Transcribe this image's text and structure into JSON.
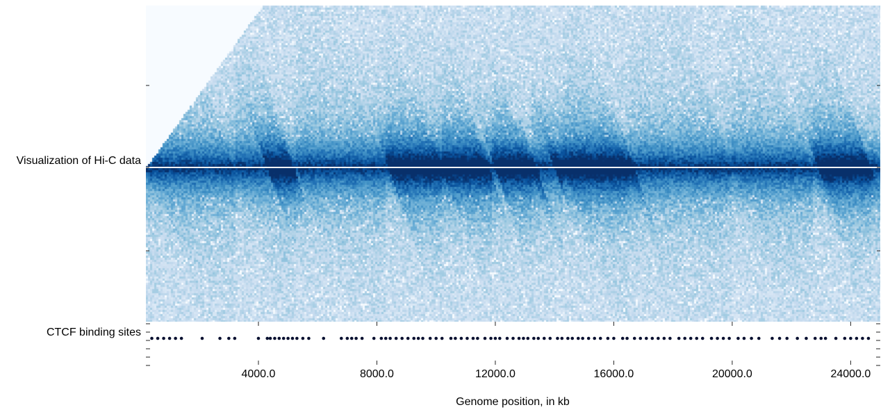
{
  "chart_data": {
    "type": "heatmap",
    "title": "",
    "panels": [
      {
        "name": "Visualization of Hi-C data",
        "type": "heatmap",
        "colormap": "Blues"
      },
      {
        "name": "CTCF binding sites",
        "type": "scatter"
      }
    ],
    "xlabel": "Genome position, in kb",
    "xlim": [
      200,
      25000
    ],
    "xticks": [
      4000,
      8000,
      12000,
      16000,
      20000,
      24000
    ],
    "xtick_labels": [
      "4000.0",
      "8000.0",
      "12000.0",
      "16000.0",
      "20000.0",
      "24000.0"
    ],
    "tad_boundaries_kb": [
      400,
      3200,
      5300,
      8300,
      10200,
      11900,
      13200,
      14300,
      16500,
      20000,
      22700,
      24700
    ],
    "strong_domains_kb": [
      [
        4300,
        5200
      ],
      [
        8400,
        11800
      ],
      [
        12000,
        13400
      ],
      [
        14000,
        16700
      ],
      [
        22900,
        24700
      ]
    ],
    "ctcf_sites_kb": [
      400,
      600,
      800,
      1000,
      1200,
      1400,
      2100,
      2700,
      3000,
      3200,
      4000,
      4300,
      4400,
      4550,
      4700,
      4850,
      5000,
      5150,
      5300,
      5500,
      5700,
      6200,
      6800,
      7000,
      7150,
      7300,
      7500,
      7900,
      8150,
      8300,
      8450,
      8650,
      8850,
      9050,
      9250,
      9400,
      9550,
      9800,
      10000,
      10200,
      10500,
      10650,
      10850,
      11050,
      11250,
      11400,
      11650,
      11850,
      12000,
      12150,
      12400,
      12600,
      12800,
      12950,
      13100,
      13300,
      13450,
      13650,
      13850,
      14100,
      14250,
      14450,
      14600,
      14800,
      14950,
      15150,
      15350,
      15550,
      15800,
      16000,
      16300,
      16450,
      16700,
      16900,
      17100,
      17300,
      17500,
      17700,
      17900,
      18200,
      18400,
      18600,
      18800,
      19000,
      19300,
      19500,
      19700,
      19900,
      20200,
      20400,
      20650,
      20900,
      21350,
      21600,
      21850,
      22200,
      22500,
      22800,
      23000,
      23150,
      23500,
      23800,
      24000,
      24200,
      24400,
      24600
    ]
  },
  "colors": {
    "heatmap_dark": "#08306b",
    "heatmap_light": "#f7fbff",
    "ctcf_dot": "#081030"
  }
}
